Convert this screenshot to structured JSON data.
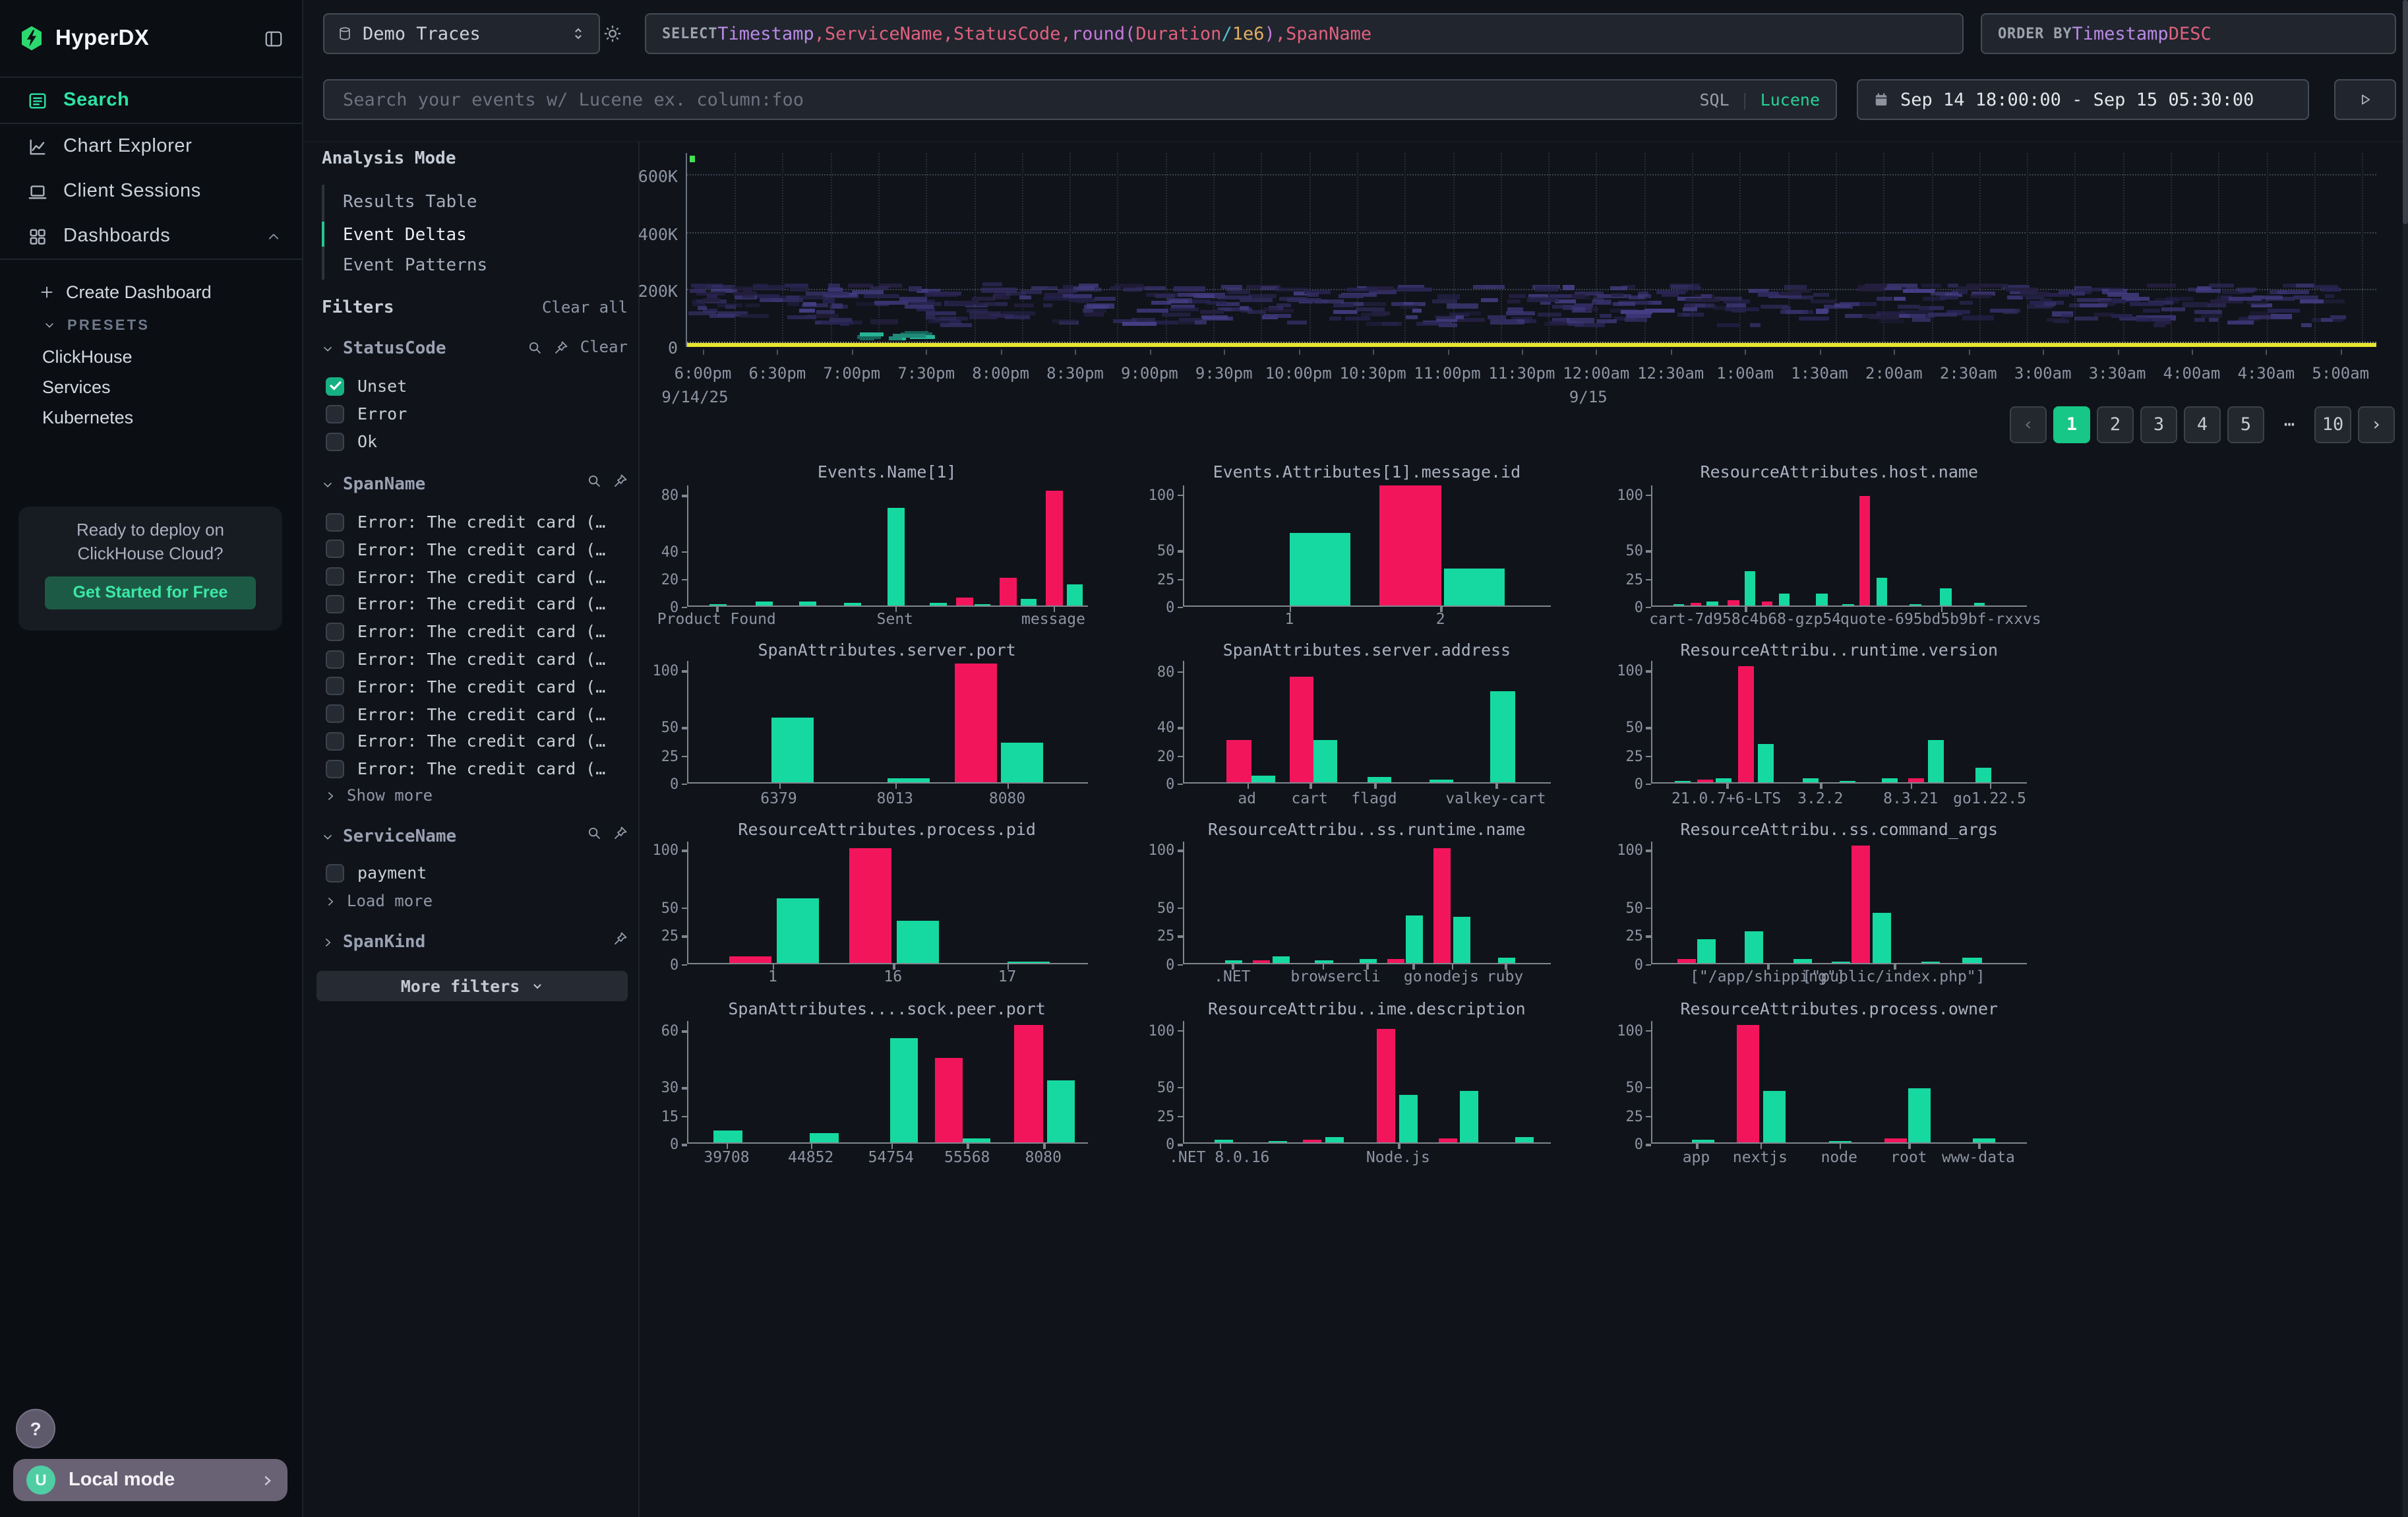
{
  "colors": {
    "accent_green": "#27dfa0",
    "bar_green": "#16d9a2",
    "bar_pink": "#f3155c",
    "yellow_band": "#e8e52f",
    "heat_purples": [
      "#282350",
      "#322c60",
      "#3b3472",
      "#453e85",
      "#241f3f"
    ],
    "heat_teals": [
      "#1f8a77",
      "#27b393",
      "#16655a"
    ]
  },
  "sidebar": {
    "brand": "HyperDX",
    "nav": [
      {
        "label": "Search",
        "icon": "search-nav",
        "active": true
      },
      {
        "label": "Chart Explorer",
        "icon": "chart-explorer",
        "active": false
      },
      {
        "label": "Client Sessions",
        "icon": "client-sessions",
        "active": false
      },
      {
        "label": "Dashboards",
        "icon": "dashboards",
        "active": false,
        "chevron": "up"
      }
    ],
    "create_dashboard": "Create Dashboard",
    "presets_label": "PRESETS",
    "presets": [
      "ClickHouse",
      "Services",
      "Kubernetes"
    ],
    "promo": {
      "line1": "Ready to deploy on",
      "line2": "ClickHouse Cloud?",
      "cta": "Get Started for Free"
    },
    "help": "?",
    "user_initial": "U",
    "account": "Local mode"
  },
  "topbar": {
    "source": "Demo Traces",
    "select_tokens": [
      {
        "t": "SELECT ",
        "c": "kw"
      },
      {
        "t": "Timestamp",
        "c": "col"
      },
      {
        "t": ", ",
        "c": "pun"
      },
      {
        "t": "ServiceName",
        "c": "id"
      },
      {
        "t": ", ",
        "c": "pun"
      },
      {
        "t": "StatusCode",
        "c": "id"
      },
      {
        "t": ", ",
        "c": "pun"
      },
      {
        "t": "round",
        "c": "fn"
      },
      {
        "t": "(",
        "c": "fn"
      },
      {
        "t": "Duration",
        "c": "id"
      },
      {
        "t": " / ",
        "c": "op"
      },
      {
        "t": "1e6",
        "c": "num"
      },
      {
        "t": ")",
        "c": "fn"
      },
      {
        "t": ", ",
        "c": "pun"
      },
      {
        "t": "SpanName",
        "c": "id"
      }
    ],
    "orderby_tokens": [
      {
        "t": "ORDER BY ",
        "c": "kw"
      },
      {
        "t": "Timestamp",
        "c": "col"
      },
      {
        "t": " DESC",
        "c": "id"
      }
    ],
    "search_placeholder": "Search your events w/ Lucene ex. column:foo",
    "lang": {
      "sql": "SQL",
      "divider": "|",
      "lucene": "Lucene"
    },
    "date_range": "Sep 14 18:00:00 - Sep 15 05:30:00"
  },
  "filters": {
    "analysis_mode_label": "Analysis Mode",
    "analysis_modes": [
      {
        "label": "Results Table",
        "active": false
      },
      {
        "label": "Event Deltas",
        "active": true
      },
      {
        "label": "Event Patterns",
        "active": false
      }
    ],
    "filters_label": "Filters",
    "clear_all": "Clear all",
    "groups": [
      {
        "name": "StatusCode",
        "expanded": true,
        "search": true,
        "pin": true,
        "clear": "Clear",
        "items": [
          {
            "label": "Unset",
            "checked": true
          },
          {
            "label": "Error",
            "checked": false
          },
          {
            "label": "Ok",
            "checked": false
          }
        ]
      },
      {
        "name": "SpanName",
        "expanded": true,
        "search": true,
        "pin": true,
        "more": "Show more",
        "items": [
          {
            "label": "Error: The credit card (…",
            "checked": false
          },
          {
            "label": "Error: The credit card (…",
            "checked": false
          },
          {
            "label": "Error: The credit card (…",
            "checked": false
          },
          {
            "label": "Error: The credit card (…",
            "checked": false
          },
          {
            "label": "Error: The credit card (…",
            "checked": false
          },
          {
            "label": "Error: The credit card (…",
            "checked": false
          },
          {
            "label": "Error: The credit card (…",
            "checked": false
          },
          {
            "label": "Error: The credit card (…",
            "checked": false
          },
          {
            "label": "Error: The credit card (…",
            "checked": false
          },
          {
            "label": "Error: The credit card (…",
            "checked": false
          }
        ]
      },
      {
        "name": "ServiceName",
        "expanded": true,
        "search": true,
        "pin": true,
        "more": "Load more",
        "items": [
          {
            "label": "payment",
            "checked": false
          }
        ]
      },
      {
        "name": "SpanKind",
        "expanded": false,
        "search": false,
        "pin": true,
        "items": []
      }
    ],
    "more_filters": "More filters"
  },
  "pagination": {
    "prev": "‹",
    "next": "›",
    "pages": [
      "1",
      "2",
      "3",
      "4",
      "5",
      "⋯",
      "10"
    ],
    "active": "1"
  },
  "chart_data": [
    {
      "id": "event-volume",
      "type": "heatmap",
      "title": "",
      "yticks": [
        "0",
        "200K",
        "400K",
        "600K"
      ],
      "ymax_k": 676,
      "x_labels": [
        "6:00pm",
        "6:30pm",
        "7:00pm",
        "7:30pm",
        "8:00pm",
        "8:30pm",
        "9:00pm",
        "9:30pm",
        "10:00pm",
        "10:30pm",
        "11:00pm",
        "11:30pm",
        "12:00am",
        "12:30am",
        "1:00am",
        "1:30am",
        "2:00am",
        "2:30am",
        "3:00am",
        "3:30am",
        "4:00am",
        "4:30am",
        "5:00am"
      ],
      "date_labels": [
        {
          "text": "9/14/25",
          "index": 0
        },
        {
          "text": "9/15",
          "index": 12
        }
      ],
      "description": "Event volume heatmap: dense purple cells between ~50K and ~195K across the full time range, solid yellow band at ~0-8K, small teal cluster near 7:15pm, grid dotted."
    },
    {
      "id": "events-name",
      "type": "bar",
      "title": "Events.Name[1]",
      "yticks": [
        0,
        20,
        40,
        80
      ],
      "ymax": 87,
      "bw": 0.042,
      "bars": [
        [
          0.075,
          1,
          "g"
        ],
        [
          0.19,
          3,
          "g"
        ],
        [
          0.3,
          3,
          "g"
        ],
        [
          0.41,
          2,
          "g"
        ],
        [
          0.52,
          70,
          "g"
        ],
        [
          0.625,
          1.5,
          "g"
        ],
        [
          0.69,
          6,
          "p"
        ],
        [
          0.735,
          0.7,
          "g"
        ],
        [
          0.8,
          20,
          "p"
        ],
        [
          0.85,
          4.5,
          "g"
        ],
        [
          0.915,
          82,
          "p"
        ],
        [
          0.965,
          15,
          "g"
        ]
      ],
      "xticks": [
        [
          0.075,
          "Product Found"
        ],
        [
          0.52,
          "Sent"
        ],
        [
          0.915,
          "message"
        ]
      ]
    },
    {
      "id": "message-id",
      "type": "bar",
      "title": "Events.Attributes[1].message.id",
      "yticks": [
        0,
        25,
        50,
        100
      ],
      "ymax": 108,
      "bw": 0.165,
      "bars": [
        [
          0.37,
          65,
          "g"
        ],
        [
          0.615,
          107,
          "p"
        ],
        [
          0.79,
          33,
          "g"
        ]
      ],
      "xticks": [
        [
          0.29,
          "1"
        ],
        [
          0.7,
          "2"
        ]
      ]
    },
    {
      "id": "host-name",
      "type": "bar",
      "title": "ResourceAttributes.host.name",
      "yticks": [
        0,
        25,
        50,
        100
      ],
      "ymax": 108,
      "bw": 0.03,
      "bars": [
        [
          0.07,
          1,
          "g"
        ],
        [
          0.115,
          2,
          "p"
        ],
        [
          0.16,
          3,
          "g"
        ],
        [
          0.215,
          5,
          "p"
        ],
        [
          0.26,
          30,
          "g"
        ],
        [
          0.305,
          3,
          "p"
        ],
        [
          0.35,
          11,
          "g"
        ],
        [
          0.45,
          10,
          "g"
        ],
        [
          0.52,
          0.6,
          "g"
        ],
        [
          0.565,
          97,
          "p"
        ],
        [
          0.61,
          25,
          "g"
        ],
        [
          0.7,
          0.6,
          "g"
        ],
        [
          0.78,
          15,
          "g"
        ],
        [
          0.87,
          2.5,
          "g"
        ]
      ],
      "xticks": [
        [
          0.25,
          "cart-7d958c4b68-gzp54"
        ],
        [
          0.77,
          "quote-695bd5b9bf-rxxvs"
        ]
      ]
    },
    {
      "id": "server-port",
      "type": "bar",
      "title": "SpanAttributes.server.port",
      "yticks": [
        0,
        25,
        50,
        100
      ],
      "ymax": 108,
      "bw": 0.105,
      "bars": [
        [
          0.26,
          57,
          "g"
        ],
        [
          0.55,
          3,
          "g"
        ],
        [
          0.72,
          105,
          "p"
        ],
        [
          0.835,
          35,
          "g"
        ]
      ],
      "xticks": [
        [
          0.23,
          "6379"
        ],
        [
          0.52,
          "8013"
        ],
        [
          0.8,
          "8080"
        ]
      ]
    },
    {
      "id": "server-address",
      "type": "bar",
      "title": "SpanAttributes.server.address",
      "yticks": [
        0,
        20,
        40,
        80
      ],
      "ymax": 87,
      "bw": 0.065,
      "bars": [
        [
          0.15,
          30,
          "p"
        ],
        [
          0.215,
          5,
          "g"
        ],
        [
          0.32,
          75,
          "p"
        ],
        [
          0.385,
          30,
          "g"
        ],
        [
          0.53,
          4,
          "g"
        ],
        [
          0.7,
          2,
          "g"
        ],
        [
          0.865,
          65,
          "g"
        ]
      ],
      "xticks": [
        [
          0.175,
          "ad"
        ],
        [
          0.345,
          "cart"
        ],
        [
          0.52,
          "flagd"
        ],
        [
          0.85,
          "valkey-cart"
        ]
      ]
    },
    {
      "id": "runtime-version",
      "type": "bar",
      "title": "ResourceAttribu..runtime.version",
      "yticks": [
        0,
        25,
        50,
        100
      ],
      "ymax": 108,
      "bw": 0.042,
      "bars": [
        [
          0.08,
          0.6,
          "g"
        ],
        [
          0.14,
          2,
          "p"
        ],
        [
          0.19,
          4,
          "g"
        ],
        [
          0.25,
          102,
          "p"
        ],
        [
          0.3,
          34,
          "g"
        ],
        [
          0.42,
          4,
          "g"
        ],
        [
          0.52,
          1.5,
          "g"
        ],
        [
          0.63,
          3,
          "g"
        ],
        [
          0.7,
          3,
          "p"
        ],
        [
          0.755,
          37,
          "g"
        ],
        [
          0.88,
          13,
          "g"
        ]
      ],
      "xticks": [
        [
          0.2,
          "21.0.7+6-LTS"
        ],
        [
          0.45,
          "3.2.2"
        ],
        [
          0.69,
          "8.3.21"
        ],
        [
          0.9,
          "go1.22.5"
        ]
      ]
    },
    {
      "id": "process-pid",
      "type": "bar",
      "title": "ResourceAttributes.process.pid",
      "yticks": [
        0,
        25,
        50,
        100
      ],
      "ymax": 108,
      "bw": 0.105,
      "bars": [
        [
          0.155,
          5,
          "p"
        ],
        [
          0.275,
          57,
          "g"
        ],
        [
          0.455,
          100,
          "p"
        ],
        [
          0.575,
          37,
          "g"
        ],
        [
          0.85,
          0.8,
          "g"
        ]
      ],
      "xticks": [
        [
          0.215,
          "1"
        ],
        [
          0.515,
          "16"
        ],
        [
          0.8,
          "17"
        ]
      ]
    },
    {
      "id": "runtime-name",
      "type": "bar",
      "title": "ResourceAttribu..ss.runtime.name",
      "yticks": [
        0,
        25,
        50,
        100
      ],
      "ymax": 108,
      "bw": 0.048,
      "bars": [
        [
          0.135,
          2,
          "g"
        ],
        [
          0.21,
          2.5,
          "p"
        ],
        [
          0.265,
          5,
          "g"
        ],
        [
          0.38,
          2.5,
          "g"
        ],
        [
          0.5,
          3.5,
          "g"
        ],
        [
          0.575,
          3,
          "p"
        ],
        [
          0.625,
          42,
          "g"
        ],
        [
          0.7,
          100,
          "p"
        ],
        [
          0.755,
          40,
          "g"
        ],
        [
          0.875,
          4.5,
          "g"
        ]
      ],
      "xticks": [
        [
          0.135,
          ".NET"
        ],
        [
          0.38,
          "browser"
        ],
        [
          0.5,
          "cli"
        ],
        [
          0.625,
          "go"
        ],
        [
          0.73,
          "nodejs"
        ],
        [
          0.875,
          "ruby"
        ]
      ]
    },
    {
      "id": "command-args",
      "type": "bar",
      "title": "ResourceAttribu..ss.command_args",
      "yticks": [
        0,
        25,
        50,
        100
      ],
      "ymax": 108,
      "bw": 0.05,
      "bars": [
        [
          0.09,
          3,
          "p"
        ],
        [
          0.145,
          20,
          "g"
        ],
        [
          0.27,
          27,
          "g"
        ],
        [
          0.4,
          3,
          "g"
        ],
        [
          0.5,
          0.6,
          "g"
        ],
        [
          0.555,
          103,
          "p"
        ],
        [
          0.61,
          44,
          "g"
        ],
        [
          0.74,
          0.6,
          "g"
        ],
        [
          0.85,
          4,
          "g"
        ]
      ],
      "xticks": [
        [
          0.31,
          "[\"/app/shipping\"]"
        ],
        [
          0.645,
          "[\"public/index.php\"]"
        ]
      ]
    },
    {
      "id": "sock-peer-port",
      "type": "bar",
      "title": "SpanAttributes....sock.peer.port",
      "yticks": [
        0,
        15,
        30,
        60
      ],
      "ymax": 65,
      "bw": 0.07,
      "bars": [
        [
          0.1,
          6,
          "g"
        ],
        [
          0.34,
          5,
          "g"
        ],
        [
          0.54,
          55,
          "g"
        ],
        [
          0.65,
          45,
          "p"
        ],
        [
          0.72,
          2,
          "g"
        ],
        [
          0.85,
          62,
          "p"
        ],
        [
          0.93,
          33,
          "g"
        ]
      ],
      "xticks": [
        [
          0.1,
          "39708"
        ],
        [
          0.31,
          "44852"
        ],
        [
          0.51,
          "54754"
        ],
        [
          0.7,
          "55568"
        ],
        [
          0.89,
          "8080"
        ]
      ]
    },
    {
      "id": "runtime-description",
      "type": "bar",
      "title": "ResourceAttribu..ime.description",
      "yticks": [
        0,
        25,
        50,
        100
      ],
      "ymax": 108,
      "bw": 0.05,
      "bars": [
        [
          0.11,
          2,
          "g"
        ],
        [
          0.255,
          0.6,
          "g"
        ],
        [
          0.35,
          2.5,
          "p"
        ],
        [
          0.41,
          5,
          "g"
        ],
        [
          0.55,
          100,
          "p"
        ],
        [
          0.61,
          42,
          "g"
        ],
        [
          0.715,
          3.5,
          "p"
        ],
        [
          0.775,
          45,
          "g"
        ],
        [
          0.925,
          5,
          "g"
        ]
      ],
      "xticks": [
        [
          0.1,
          ".NET 8.0.16"
        ],
        [
          0.585,
          "Node.js"
        ]
      ]
    },
    {
      "id": "process-owner",
      "type": "bar",
      "title": "ResourceAttributes.process.owner",
      "yticks": [
        0,
        25,
        50,
        100
      ],
      "ymax": 108,
      "bw": 0.06,
      "bars": [
        [
          0.135,
          2,
          "g"
        ],
        [
          0.255,
          103,
          "p"
        ],
        [
          0.325,
          45,
          "g"
        ],
        [
          0.5,
          0.8,
          "g"
        ],
        [
          0.645,
          3,
          "p"
        ],
        [
          0.71,
          48,
          "g"
        ],
        [
          0.88,
          4,
          "g"
        ]
      ],
      "xticks": [
        [
          0.12,
          "app"
        ],
        [
          0.29,
          "nextjs"
        ],
        [
          0.5,
          "node"
        ],
        [
          0.685,
          "root"
        ],
        [
          0.87,
          "www-data"
        ]
      ]
    }
  ]
}
